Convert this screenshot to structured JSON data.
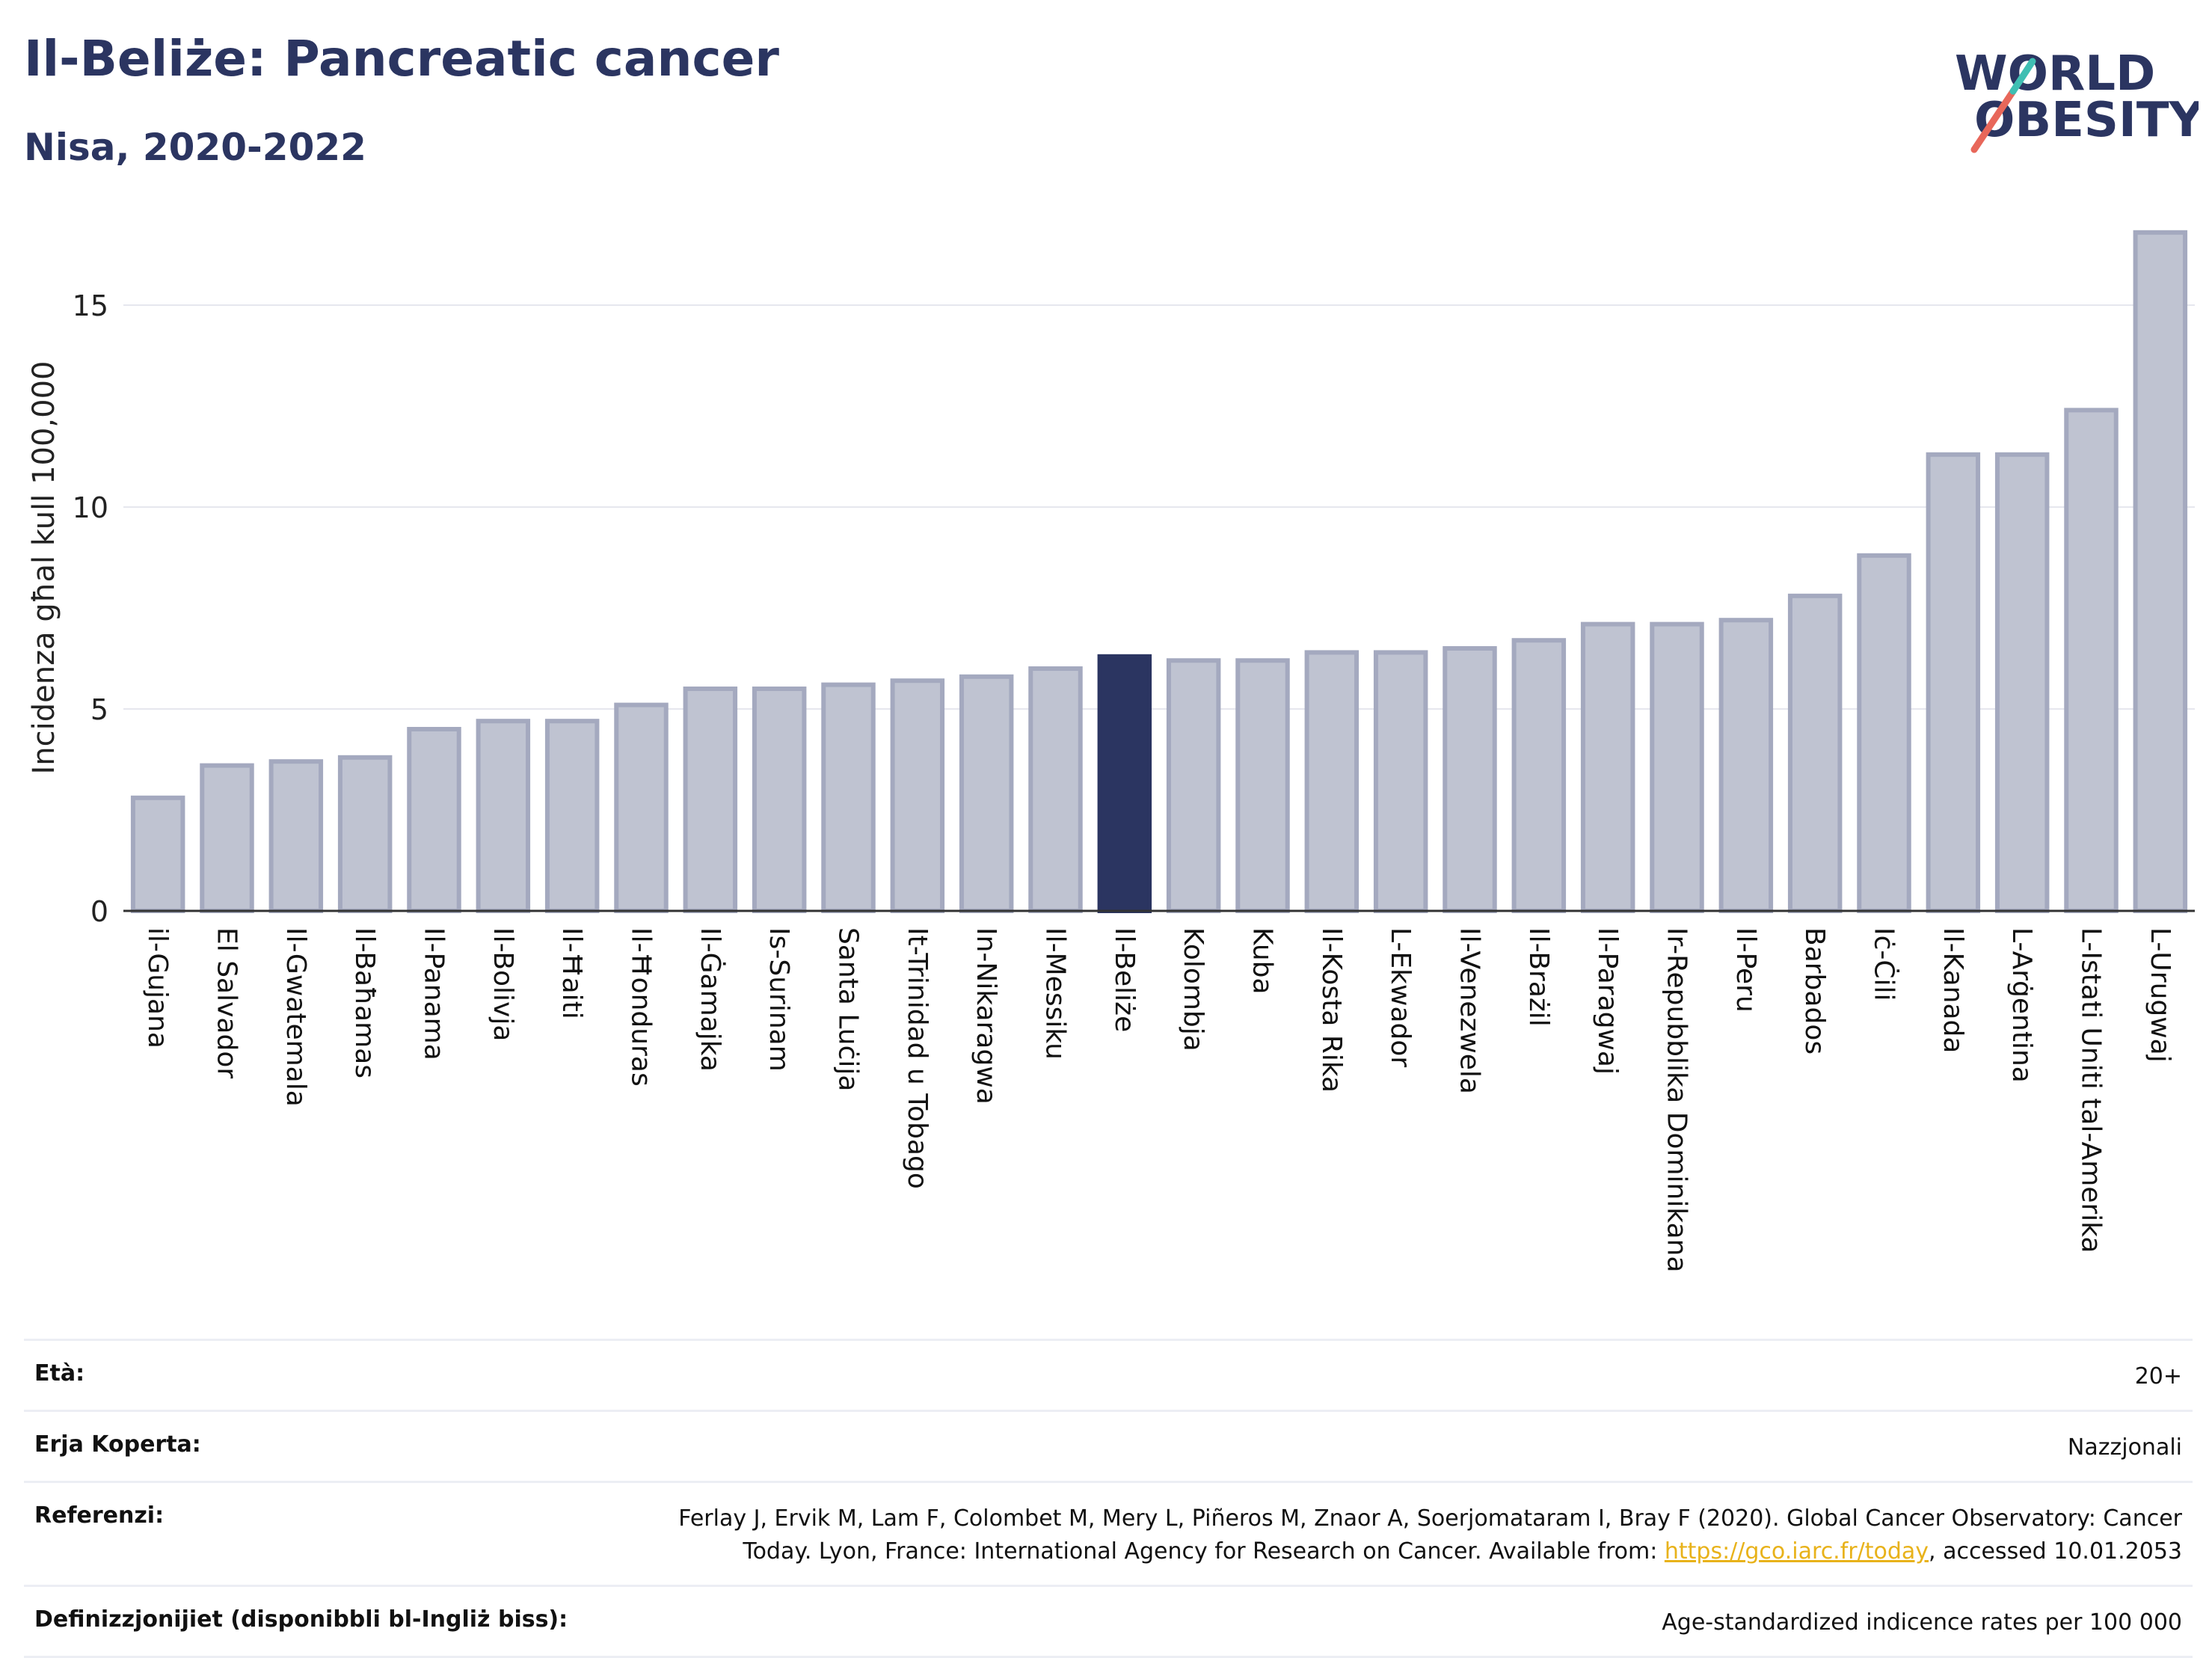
{
  "header": {
    "title": "Il-Beliże: Pancreatic cancer",
    "subtitle": "Nisa, 2020-2022"
  },
  "logo": {
    "line1": "WORLD",
    "line2": "OBESITY"
  },
  "colors": {
    "bar": "#bfc3d1",
    "bar_edge": "#a4a9bf",
    "highlight": "#2b3561",
    "text": "#2b3561",
    "logo_teal": "#3fbfb3",
    "logo_red": "#e8675a"
  },
  "chart_data": {
    "type": "bar",
    "title": "Il-Beliże: Pancreatic cancer",
    "subtitle": "Nisa, 2020-2022",
    "ylabel": "Incidenza għal kull 100,000",
    "xlabel": "",
    "ylim": [
      0,
      17
    ],
    "yticks": [
      0,
      5,
      10,
      15
    ],
    "grid": true,
    "highlight_category": "Il-Beliże",
    "categories": [
      "il-Gujana",
      "El Salvador",
      "Il-Gwatemala",
      "Il-Baħamas",
      "Il-Panama",
      "Il-Bolivja",
      "Il-Ħaiti",
      "Il-Ħonduras",
      "Il-Ġamajka",
      "Is-Surinam",
      "Santa Luċija",
      "It-Trinidad u Tobago",
      "In-Nikaragwa",
      "Il-Messiku",
      "Il-Beliże",
      "Kolombja",
      "Kuba",
      "Il-Kosta Rika",
      "L-Ekwador",
      "Il-Venezwela",
      "Il-Brażil",
      "Il-Paragwaj",
      "Ir-Repubblika Dominikana",
      "Il-Peru",
      "Barbados",
      "Iċ-Ċili",
      "Il-Kanada",
      "L-Arġentina",
      "L-Istati Uniti tal-Amerika",
      "L-Urugwaj"
    ],
    "values": [
      2.8,
      3.6,
      3.7,
      3.8,
      4.5,
      4.7,
      4.7,
      5.1,
      5.5,
      5.5,
      5.6,
      5.7,
      5.8,
      6.0,
      6.3,
      6.2,
      6.2,
      6.4,
      6.4,
      6.5,
      6.7,
      7.1,
      7.1,
      7.2,
      7.8,
      8.8,
      11.3,
      11.3,
      12.4,
      16.8
    ]
  },
  "footer": {
    "rows": [
      {
        "label": "Età:",
        "value": "20+"
      },
      {
        "label": "Erja Koperta:",
        "value": "Nazzjonali"
      },
      {
        "label": "Referenzi:",
        "value_line1": "Ferlay J, Ervik M, Lam F, Colombet M, Mery L, Piñeros M, Znaor A, Soerjomataram I, Bray F (2020). Global Cancer Observatory: Cancer",
        "value_pre": "Today. Lyon, France: International Agency for Research on Cancer. Available from: ",
        "link": "https://gco.iarc.fr/today",
        "value_post": ", accessed 10.01.2053"
      },
      {
        "label": "Definizzjonijiet (disponibbli bl-Ingliż biss):",
        "value": "Age-standardized indicence rates per 100 000"
      }
    ]
  }
}
